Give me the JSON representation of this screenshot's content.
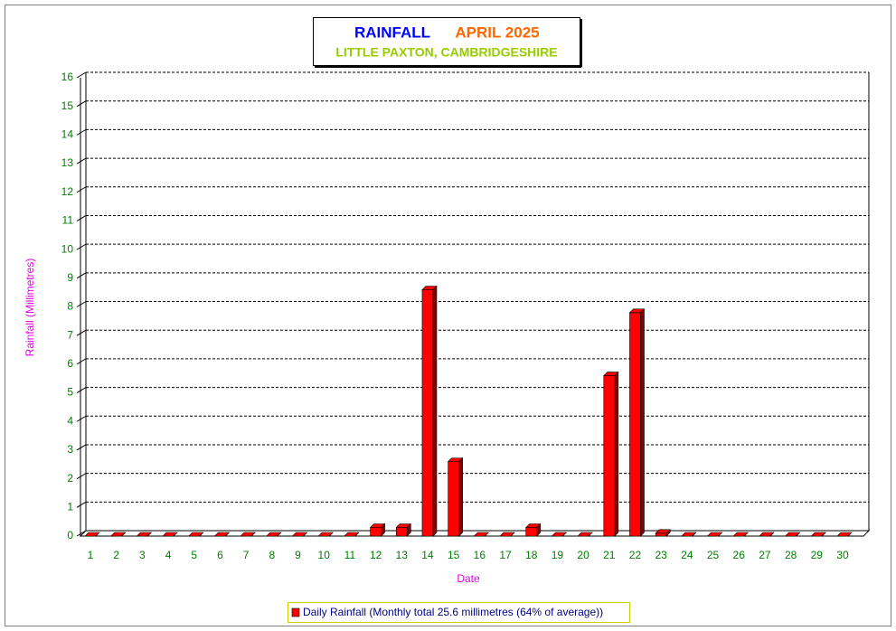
{
  "chart_data": {
    "type": "bar",
    "title": "RAINFALL",
    "period": "APRIL 2025",
    "subtitle": "LITTLE PAXTON, CAMBRIDGESHIRE",
    "y_label": "Rainfall  (Millimetres)",
    "x_label": "Date",
    "categories": [
      "1",
      "2",
      "3",
      "4",
      "5",
      "6",
      "7",
      "8",
      "9",
      "10",
      "11",
      "12",
      "13",
      "14",
      "15",
      "16",
      "17",
      "18",
      "19",
      "20",
      "21",
      "22",
      "23",
      "24",
      "25",
      "26",
      "27",
      "28",
      "29",
      "30"
    ],
    "series": [
      {
        "name": "Daily Rainfall (Monthly total 25.6 millimetres (64% of average))",
        "color": "#ff0000",
        "values": [
          0,
          0,
          0,
          0,
          0,
          0,
          0,
          0,
          0,
          0,
          0,
          0.3,
          0.3,
          8.6,
          2.6,
          0,
          0,
          0.3,
          0,
          0,
          5.6,
          7.8,
          0.1,
          0,
          0,
          0,
          0,
          0,
          0,
          0
        ]
      }
    ],
    "ylim": [
      0,
      16
    ],
    "yticks": [
      0,
      1,
      2,
      3,
      4,
      5,
      6,
      7,
      8,
      9,
      10,
      11,
      12,
      13,
      14,
      15,
      16
    ],
    "grid": true
  }
}
